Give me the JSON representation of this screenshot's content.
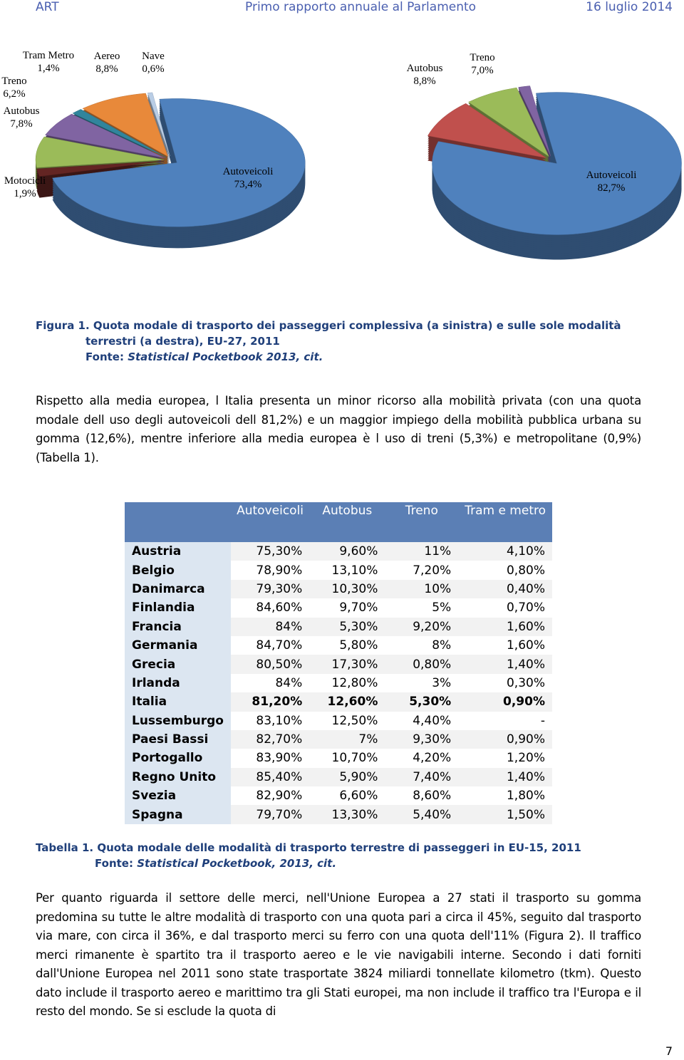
{
  "header": {
    "left": "ART",
    "center": "Primo rapporto annuale al Parlamento",
    "right": "16 luglio 2014"
  },
  "chart_data": [
    {
      "type": "pie",
      "categories": [
        "Nave",
        "Autoveicoli",
        "Motocicli",
        "Autobus",
        "Treno",
        "Tram Metro",
        "Aereo"
      ],
      "values": [
        0.6,
        73.4,
        1.9,
        7.8,
        6.2,
        1.4,
        8.8
      ],
      "value_labels": [
        "0,6%",
        "73,4%",
        "1,9%",
        "7,8%",
        "6,2%",
        "1,4%",
        "8,8%"
      ],
      "colors": [
        "#b9cde5",
        "#4f81bd",
        "#632523",
        "#9bbb59",
        "#8064a2",
        "#31859c",
        "#e8893a"
      ]
    },
    {
      "type": "pie",
      "categories": [
        null,
        "Autoveicoli",
        "Autobus",
        "Treno"
      ],
      "values": [
        1.5,
        82.7,
        8.8,
        7.0
      ],
      "value_labels": [
        null,
        "82,7%",
        "8,8%",
        "7,0%"
      ],
      "colors": [
        "#8064a2",
        "#4f81bd",
        "#c0504d",
        "#9bbb59"
      ]
    }
  ],
  "figure_caption": {
    "label": "Figura 1.",
    "text": "Quota modale di trasporto dei passeggeri complessiva (a sinistra) e sulle sole modalità terrestri (a destra), EU-27, 2011",
    "source_label": "Fonte:",
    "source": "Statistical Pocketbook 2013, cit."
  },
  "paragraphs": [
    "Rispetto alla media europea, l Italia presenta un minor ricorso alla mobilità privata (con una quota modale dell uso degli autoveicoli dell 81,2%) e un maggior impiego della mobilità pubblica urbana su gomma (12,6%), mentre inferiore alla media europea è l uso di treni (5,3%) e metropolitane (0,9%)(Tabella 1).",
    "Per quanto riguarda il settore delle merci, nell'Unione Europea a 27 stati il trasporto su gomma predomina su tutte le altre modalità di trasporto con una quota pari a circa il 45%, seguito dal trasporto via mare, con circa il 36%, e dal trasporto merci su ferro con una quota dell'11% (Figura 2). Il traffico merci rimanente è spartito tra il trasporto aereo e le vie navigabili interne. Secondo i dati forniti dall'Unione Europea nel 2011 sono state trasportate 3824 miliardi tonnellate kilometro (tkm). Questo dato include il trasporto aereo e marittimo tra gli Stati europei, ma non include il traffico tra l'Europa e il resto del mondo. Se si esclude la quota di"
  ],
  "table": {
    "columns": [
      "Autoveicoli",
      "Autobus",
      "Treno",
      "Tram e metro"
    ],
    "rows": [
      [
        "Austria",
        "75,30%",
        "9,60%",
        "11%",
        "4,10%"
      ],
      [
        "Belgio",
        "78,90%",
        "13,10%",
        "7,20%",
        "0,80%"
      ],
      [
        "Danimarca",
        "79,30%",
        "10,30%",
        "10%",
        "0,40%"
      ],
      [
        "Finlandia",
        "84,60%",
        "9,70%",
        "5%",
        "0,70%"
      ],
      [
        "Francia",
        "84%",
        "5,30%",
        "9,20%",
        "1,60%"
      ],
      [
        "Germania",
        "84,70%",
        "5,80%",
        "8%",
        "1,60%"
      ],
      [
        "Grecia",
        "80,50%",
        "17,30%",
        "0,80%",
        "1,40%"
      ],
      [
        "Irlanda",
        "84%",
        "12,80%",
        "3%",
        "0,30%"
      ],
      [
        "Italia",
        "81,20%",
        "12,60%",
        "5,30%",
        "0,90%"
      ],
      [
        "Lussemburgo",
        "83,10%",
        "12,50%",
        "4,40%",
        "-"
      ],
      [
        "Paesi Bassi",
        "82,70%",
        "7%",
        "9,30%",
        "0,90%"
      ],
      [
        "Portogallo",
        "83,90%",
        "10,70%",
        "4,20%",
        "1,20%"
      ],
      [
        "Regno Unito",
        "85,40%",
        "5,90%",
        "7,40%",
        "1,40%"
      ],
      [
        "Svezia",
        "82,90%",
        "6,60%",
        "8,60%",
        "1,80%"
      ],
      [
        "Spagna",
        "79,70%",
        "13,30%",
        "5,40%",
        "1,50%"
      ]
    ]
  },
  "table_caption": {
    "label": "Tabella 1.",
    "text": "Quota modale delle modalità di trasporto terrestre di passeggeri in EU-15, 2011",
    "source_label": "Fonte:",
    "source": "Statistical Pocketbook, 2013, cit."
  },
  "page_number": "7"
}
